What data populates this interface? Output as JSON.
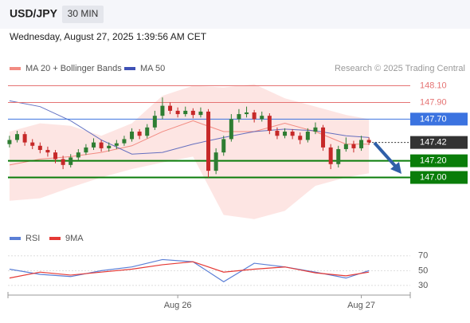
{
  "chart_data": [
    {
      "type": "candlestick",
      "title": "USD/JPY",
      "timeframe": "30 MIN",
      "subtitle": "Wednesday, August 27, 2025 1:39:56 AM CET",
      "source": "Research © 2025 Trading Central",
      "up_color": "#2e7d32",
      "down_color": "#c62828",
      "xlim": [
        -0.2,
        52.4
      ],
      "ylim": [
        146.45,
        148.22
      ],
      "ohlc": [
        [
          147.4,
          147.5,
          147.36,
          147.45
        ],
        [
          147.45,
          147.56,
          147.42,
          147.52
        ],
        [
          147.52,
          147.55,
          147.38,
          147.42
        ],
        [
          147.42,
          147.46,
          147.34,
          147.38
        ],
        [
          147.38,
          147.42,
          147.29,
          147.33
        ],
        [
          147.33,
          147.37,
          147.25,
          147.3
        ],
        [
          147.3,
          147.33,
          147.17,
          147.22
        ],
        [
          147.22,
          147.26,
          147.1,
          147.15
        ],
        [
          147.15,
          147.28,
          147.12,
          147.24
        ],
        [
          147.24,
          147.34,
          147.2,
          147.3
        ],
        [
          147.3,
          147.4,
          147.27,
          147.36
        ],
        [
          147.36,
          147.47,
          147.33,
          147.42
        ],
        [
          147.42,
          147.45,
          147.31,
          147.35
        ],
        [
          147.35,
          147.42,
          147.31,
          147.38
        ],
        [
          147.38,
          147.45,
          147.34,
          147.41
        ],
        [
          147.41,
          147.5,
          147.38,
          147.46
        ],
        [
          147.46,
          147.59,
          147.43,
          147.55
        ],
        [
          147.55,
          147.58,
          147.46,
          147.5
        ],
        [
          147.5,
          147.64,
          147.47,
          147.6
        ],
        [
          147.6,
          147.8,
          147.57,
          147.74
        ],
        [
          147.74,
          147.96,
          147.7,
          147.86
        ],
        [
          147.86,
          147.9,
          147.76,
          147.8
        ],
        [
          147.8,
          147.84,
          147.72,
          147.76
        ],
        [
          147.76,
          147.85,
          147.73,
          147.8
        ],
        [
          147.8,
          147.83,
          147.71,
          147.75
        ],
        [
          147.75,
          147.84,
          147.72,
          147.79
        ],
        [
          147.79,
          147.82,
          147.0,
          147.08
        ],
        [
          147.08,
          147.35,
          147.04,
          147.3
        ],
        [
          147.3,
          147.5,
          147.26,
          147.46
        ],
        [
          147.46,
          147.76,
          147.43,
          147.7
        ],
        [
          147.7,
          147.82,
          147.66,
          147.76
        ],
        [
          147.76,
          147.85,
          147.72,
          147.78
        ],
        [
          147.78,
          147.81,
          147.66,
          147.7
        ],
        [
          147.7,
          147.79,
          147.67,
          147.74
        ],
        [
          147.74,
          147.77,
          147.52,
          147.56
        ],
        [
          147.56,
          147.6,
          147.46,
          147.5
        ],
        [
          147.5,
          147.59,
          147.47,
          147.55
        ],
        [
          147.55,
          147.58,
          147.46,
          147.5
        ],
        [
          147.5,
          147.54,
          147.4,
          147.45
        ],
        [
          147.45,
          147.59,
          147.42,
          147.55
        ],
        [
          147.55,
          147.66,
          147.52,
          147.6
        ],
        [
          147.6,
          147.63,
          147.32,
          147.36
        ],
        [
          147.36,
          147.4,
          147.1,
          147.16
        ],
        [
          147.16,
          147.38,
          147.12,
          147.34
        ],
        [
          147.34,
          147.48,
          147.31,
          147.4
        ],
        [
          147.4,
          147.44,
          147.3,
          147.35
        ],
        [
          147.35,
          147.5,
          147.32,
          147.45
        ],
        [
          147.45,
          147.48,
          147.39,
          147.42
        ]
      ],
      "indicator_x": [
        0,
        4,
        8,
        12,
        16,
        20,
        24,
        28,
        32,
        36,
        40,
        44,
        47
      ],
      "bands": {
        "name": "MA 20 + Bollinger Bands",
        "color": "#f28b82",
        "fill": "#fde0de",
        "upper": [
          147.55,
          147.65,
          147.62,
          147.5,
          147.65,
          147.98,
          148.1,
          148.08,
          148.12,
          147.95,
          147.85,
          147.75,
          147.7
        ],
        "middle": [
          147.15,
          147.22,
          147.25,
          147.3,
          147.38,
          147.55,
          147.68,
          147.55,
          147.55,
          147.65,
          147.55,
          147.4,
          147.4
        ],
        "lower": [
          146.72,
          146.75,
          146.88,
          147.0,
          147.1,
          147.18,
          147.25,
          146.55,
          146.5,
          146.6,
          146.9,
          147.0,
          147.05
        ]
      },
      "ma50": {
        "name": "MA 50",
        "color": "#3f51b5",
        "values": [
          147.92,
          147.85,
          147.68,
          147.45,
          147.28,
          147.3,
          147.4,
          147.48,
          147.55,
          147.58,
          147.56,
          147.5,
          147.48
        ]
      },
      "levels": [
        {
          "value": 148.1,
          "label": "148.10",
          "color": "#e57373",
          "style": "text"
        },
        {
          "value": 147.9,
          "label": "147.90",
          "color": "#e57373",
          "style": "text"
        },
        {
          "value": 147.7,
          "label": "147.70",
          "color": "#3b73e0",
          "style": "box"
        },
        {
          "value": 147.42,
          "label": "147.42",
          "color": "#333333",
          "style": "last"
        },
        {
          "value": 147.2,
          "label": "147.20",
          "color": "#0a7d0a",
          "style": "box"
        },
        {
          "value": 147.0,
          "label": "147.00",
          "color": "#0a7d0a",
          "style": "box"
        }
      ]
    },
    {
      "type": "line",
      "xlim": [
        -0.2,
        52.4
      ],
      "ylim": [
        17,
        87
      ],
      "yticks": [
        70,
        50,
        30
      ],
      "xticks": [
        {
          "value": 22,
          "label": "Aug 26"
        },
        {
          "value": 46,
          "label": "Aug 27"
        }
      ],
      "x": [
        0,
        4,
        8,
        12,
        16,
        20,
        24,
        28,
        32,
        36,
        40,
        44,
        47
      ],
      "series": [
        {
          "name": "RSI",
          "color": "#5b7fd6",
          "values": [
            52,
            45,
            42,
            50,
            55,
            65,
            62,
            35,
            60,
            55,
            48,
            40,
            50
          ]
        },
        {
          "name": "9MA",
          "color": "#e53935",
          "values": [
            40,
            48,
            44,
            48,
            52,
            58,
            62,
            48,
            52,
            55,
            47,
            43,
            48
          ]
        }
      ]
    }
  ]
}
